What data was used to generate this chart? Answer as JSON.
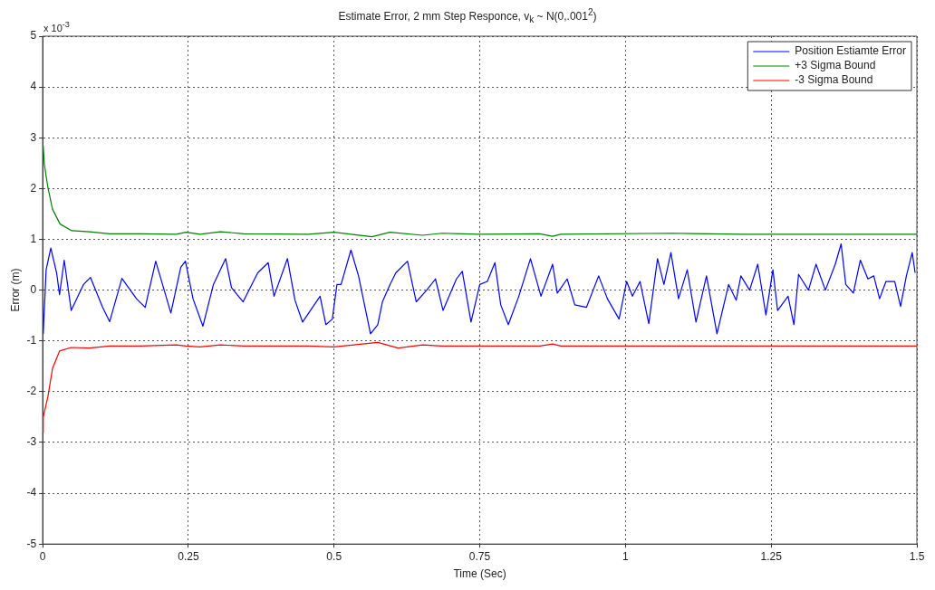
{
  "chart_data": {
    "type": "line",
    "title": "Estimate Error, 2 mm Step Responce, v$_{k}$ ~ N(0,.001$^{2}$)",
    "xlabel": "Time (Sec)",
    "ylabel": "Error (m)",
    "annotations": [
      "x 10$^{-3}$"
    ],
    "xlim": [
      0,
      1.5
    ],
    "xticks": [
      0,
      0.25,
      0.5,
      0.75,
      1,
      1.25,
      1.5
    ],
    "ylim": [
      -5,
      5
    ],
    "yticks": [
      -5,
      -4,
      -3,
      -2,
      -1,
      0,
      1,
      2,
      3,
      4,
      5
    ],
    "grid": true,
    "legend": "top right",
    "marker": "none",
    "line_style": "solid",
    "series": [
      {
        "name": "Position Estiamte Error",
        "color": "#0000ff",
        "x": [
          0.001,
          0.006,
          0.014,
          0.024,
          0.029,
          0.037,
          0.049,
          0.07,
          0.082,
          0.103,
          0.115,
          0.136,
          0.161,
          0.176,
          0.194,
          0.22,
          0.237,
          0.245,
          0.258,
          0.275,
          0.293,
          0.314,
          0.324,
          0.344,
          0.369,
          0.387,
          0.397,
          0.42,
          0.433,
          0.446,
          0.476,
          0.486,
          0.497,
          0.505,
          0.512,
          0.529,
          0.542,
          0.5625,
          0.575,
          0.583,
          0.596,
          0.606,
          0.626,
          0.641,
          0.659,
          0.674,
          0.687,
          0.71,
          0.72,
          0.735,
          0.75,
          0.763,
          0.776,
          0.786,
          0.799,
          0.817,
          0.837,
          0.855,
          0.875,
          0.883,
          0.9,
          0.913,
          0.933,
          0.954,
          0.969,
          0.989,
          1.002,
          1.012,
          1.025,
          1.04,
          1.055,
          1.066,
          1.078,
          1.091,
          1.106,
          1.121,
          1.139,
          1.157,
          1.177,
          1.19,
          1.198,
          1.213,
          1.227,
          1.241,
          1.253,
          1.261,
          1.279,
          1.289,
          1.297,
          1.314,
          1.327,
          1.343,
          1.36,
          1.37,
          1.378,
          1.391,
          1.403,
          1.416,
          1.426,
          1.436,
          1.447,
          1.462,
          1.472,
          1.482,
          1.492,
          1.497
        ],
        "values": [
          -0.86,
          0.4,
          0.83,
          0.34,
          -0.09,
          0.59,
          -0.4,
          0.11,
          0.25,
          -0.34,
          -0.62,
          0.23,
          -0.17,
          -0.34,
          0.57,
          -0.45,
          0.45,
          0.57,
          -0.17,
          -0.71,
          0.11,
          0.62,
          0.05,
          -0.23,
          0.34,
          0.54,
          -0.12,
          0.62,
          -0.2,
          -0.63,
          -0.12,
          -0.68,
          -0.57,
          0.11,
          0.11,
          0.79,
          0.28,
          -0.86,
          -0.68,
          -0.23,
          0.11,
          0.34,
          0.57,
          -0.23,
          0,
          0.22,
          -0.4,
          0.22,
          0.37,
          -0.63,
          0.11,
          0.17,
          0.54,
          -0.29,
          -0.68,
          -0.12,
          0.62,
          -0.12,
          0.51,
          -0.06,
          0.22,
          -0.29,
          -0.34,
          0.28,
          -0.17,
          -0.57,
          0.17,
          -0.12,
          0.17,
          -0.66,
          0.62,
          0.11,
          0.74,
          -0.17,
          0.4,
          -0.63,
          0.28,
          -0.86,
          0.11,
          -0.2,
          0.28,
          0,
          0.51,
          -0.49,
          0.4,
          -0.4,
          -0.12,
          -0.68,
          0.31,
          0,
          0.51,
          0,
          0.51,
          0.91,
          0.11,
          -0.06,
          0.59,
          0.22,
          0.28,
          -0.17,
          0.17,
          0.17,
          -0.32,
          0.28,
          0.74,
          0.34
        ]
      },
      {
        "name": "+3 Sigma Bound",
        "color": "#008000",
        "x": [
          0,
          0.001,
          0.003,
          0.009,
          0.017,
          0.03,
          0.05,
          0.08,
          0.115,
          0.168,
          0.229,
          0.246,
          0.27,
          0.305,
          0.345,
          0.456,
          0.5,
          0.565,
          0.596,
          0.652,
          0.685,
          0.75,
          0.853,
          0.875,
          0.889,
          1.08,
          1.2,
          1.35,
          1.5
        ],
        "values": [
          2.8,
          2.84,
          2.47,
          2.02,
          1.59,
          1.3,
          1.17,
          1.15,
          1.11,
          1.11,
          1.1,
          1.14,
          1.1,
          1.15,
          1.11,
          1.1,
          1.14,
          1.05,
          1.14,
          1.08,
          1.12,
          1.1,
          1.11,
          1.06,
          1.1,
          1.12,
          1.1,
          1.1,
          1.1
        ]
      },
      {
        "name": "-3 Sigma Bound",
        "color": "#ff0000",
        "x": [
          0,
          0.001,
          0.003,
          0.009,
          0.017,
          0.029,
          0.049,
          0.08,
          0.115,
          0.168,
          0.229,
          0.246,
          0.27,
          0.305,
          0.345,
          0.456,
          0.5,
          0.575,
          0.61,
          0.652,
          0.685,
          0.75,
          0.853,
          0.875,
          0.889,
          1.08,
          1.2,
          1.35,
          1.5
        ],
        "values": [
          -2.8,
          -2.5,
          -2.4,
          -2.1,
          -1.54,
          -1.2,
          -1.13,
          -1.14,
          -1.1,
          -1.1,
          -1.08,
          -1.1,
          -1.12,
          -1.08,
          -1.1,
          -1.1,
          -1.12,
          -1.03,
          -1.14,
          -1.08,
          -1.1,
          -1.1,
          -1.1,
          -1.06,
          -1.1,
          -1.1,
          -1.1,
          -1.1,
          -1.1
        ]
      }
    ]
  }
}
